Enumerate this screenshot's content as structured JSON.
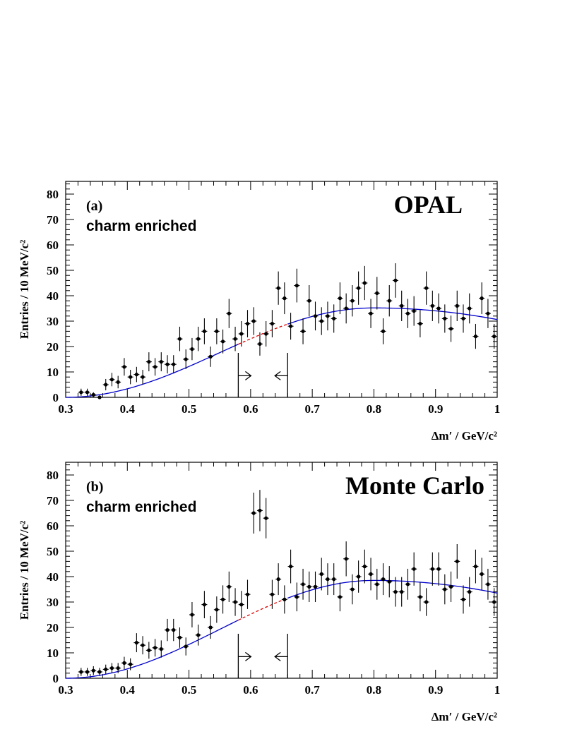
{
  "chart_data": [
    {
      "type": "scatter",
      "panel_label": "(a)",
      "subtitle": "charm enriched",
      "title": "OPAL",
      "xlabel": "Δm′ / GeV/c²",
      "ylabel": "Entries / 10 MeV/c²",
      "xlim": [
        0.3,
        1.0
      ],
      "ylim": [
        0,
        85
      ],
      "xticks": [
        "0.3",
        "0.4",
        "0.5",
        "0.6",
        "0.7",
        "0.8",
        "0.9",
        "1"
      ],
      "yticks": [
        "0",
        "10",
        "20",
        "30",
        "40",
        "50",
        "60",
        "70",
        "80"
      ],
      "signal_window": [
        0.58,
        0.66
      ],
      "fit_peak": {
        "x": 0.8,
        "y": 35.2
      },
      "fit_endpoint": {
        "x": 0.3,
        "y": 0
      },
      "fit_dashed_range": [
        0.58,
        0.66
      ],
      "points": {
        "x": [
          0.325,
          0.335,
          0.345,
          0.355,
          0.365,
          0.375,
          0.385,
          0.395,
          0.405,
          0.415,
          0.425,
          0.435,
          0.445,
          0.455,
          0.465,
          0.475,
          0.485,
          0.495,
          0.505,
          0.515,
          0.525,
          0.535,
          0.545,
          0.555,
          0.565,
          0.575,
          0.585,
          0.595,
          0.605,
          0.615,
          0.625,
          0.635,
          0.645,
          0.655,
          0.665,
          0.675,
          0.685,
          0.695,
          0.705,
          0.715,
          0.725,
          0.735,
          0.745,
          0.755,
          0.765,
          0.775,
          0.785,
          0.795,
          0.805,
          0.815,
          0.825,
          0.835,
          0.845,
          0.855,
          0.865,
          0.875,
          0.885,
          0.895,
          0.905,
          0.915,
          0.925,
          0.935,
          0.945,
          0.955,
          0.965,
          0.975,
          0.985,
          0.995
        ],
        "y": [
          2,
          2,
          1,
          0,
          5,
          7,
          6,
          12,
          8,
          9,
          8,
          14,
          12,
          14,
          13,
          13,
          23,
          15,
          19,
          23,
          26,
          16,
          26,
          22,
          33,
          23,
          25,
          29,
          30,
          21,
          25,
          29,
          43,
          39,
          28,
          44,
          26,
          38,
          32,
          30,
          32,
          31,
          39,
          35,
          38,
          43,
          45,
          33,
          41,
          26,
          38,
          46,
          36,
          33,
          34,
          29,
          43,
          36,
          35,
          31,
          27,
          36,
          31,
          35,
          24,
          39,
          33,
          24
        ]
      }
    },
    {
      "type": "scatter",
      "panel_label": "(b)",
      "subtitle": "charm enriched",
      "title": "Monte Carlo",
      "xlabel": "Δm′ / GeV/c²",
      "ylabel": "Entries / 10 MeV/c²",
      "xlim": [
        0.3,
        1.0
      ],
      "ylim": [
        0,
        85
      ],
      "xticks": [
        "0.3",
        "0.4",
        "0.5",
        "0.6",
        "0.7",
        "0.8",
        "0.9",
        "1"
      ],
      "yticks": [
        "0",
        "10",
        "20",
        "30",
        "40",
        "50",
        "60",
        "70",
        "80"
      ],
      "signal_window": [
        0.58,
        0.66
      ],
      "fit_peak": {
        "x": 0.8,
        "y": 38.5
      },
      "fit_endpoint": {
        "x": 0.3,
        "y": 0
      },
      "fit_dashed_range": [
        0.58,
        0.66
      ],
      "points": {
        "x": [
          0.325,
          0.335,
          0.345,
          0.355,
          0.365,
          0.375,
          0.385,
          0.395,
          0.405,
          0.415,
          0.425,
          0.435,
          0.445,
          0.455,
          0.465,
          0.475,
          0.485,
          0.495,
          0.505,
          0.515,
          0.525,
          0.535,
          0.545,
          0.555,
          0.565,
          0.575,
          0.585,
          0.595,
          0.605,
          0.615,
          0.625,
          0.635,
          0.645,
          0.655,
          0.665,
          0.675,
          0.685,
          0.695,
          0.705,
          0.715,
          0.725,
          0.735,
          0.745,
          0.755,
          0.765,
          0.775,
          0.785,
          0.795,
          0.805,
          0.815,
          0.825,
          0.835,
          0.845,
          0.855,
          0.865,
          0.875,
          0.885,
          0.895,
          0.905,
          0.915,
          0.925,
          0.935,
          0.945,
          0.955,
          0.965,
          0.975,
          0.985,
          0.995
        ],
        "y": [
          2.5,
          2.5,
          3,
          2.5,
          3.5,
          4,
          4,
          6,
          5.5,
          14,
          13,
          11,
          12,
          11.5,
          19,
          19,
          16,
          12.5,
          25,
          17,
          29,
          20,
          27,
          31,
          36,
          30,
          29,
          33,
          65,
          66,
          63,
          33,
          39,
          31,
          44,
          32,
          37,
          36,
          36,
          41,
          39,
          39,
          32,
          47,
          35,
          40,
          44,
          41,
          37,
          39,
          38,
          34,
          34,
          37,
          43,
          32,
          30,
          43,
          43,
          35,
          36,
          46,
          31,
          34,
          44,
          41,
          37,
          30
        ]
      }
    }
  ]
}
